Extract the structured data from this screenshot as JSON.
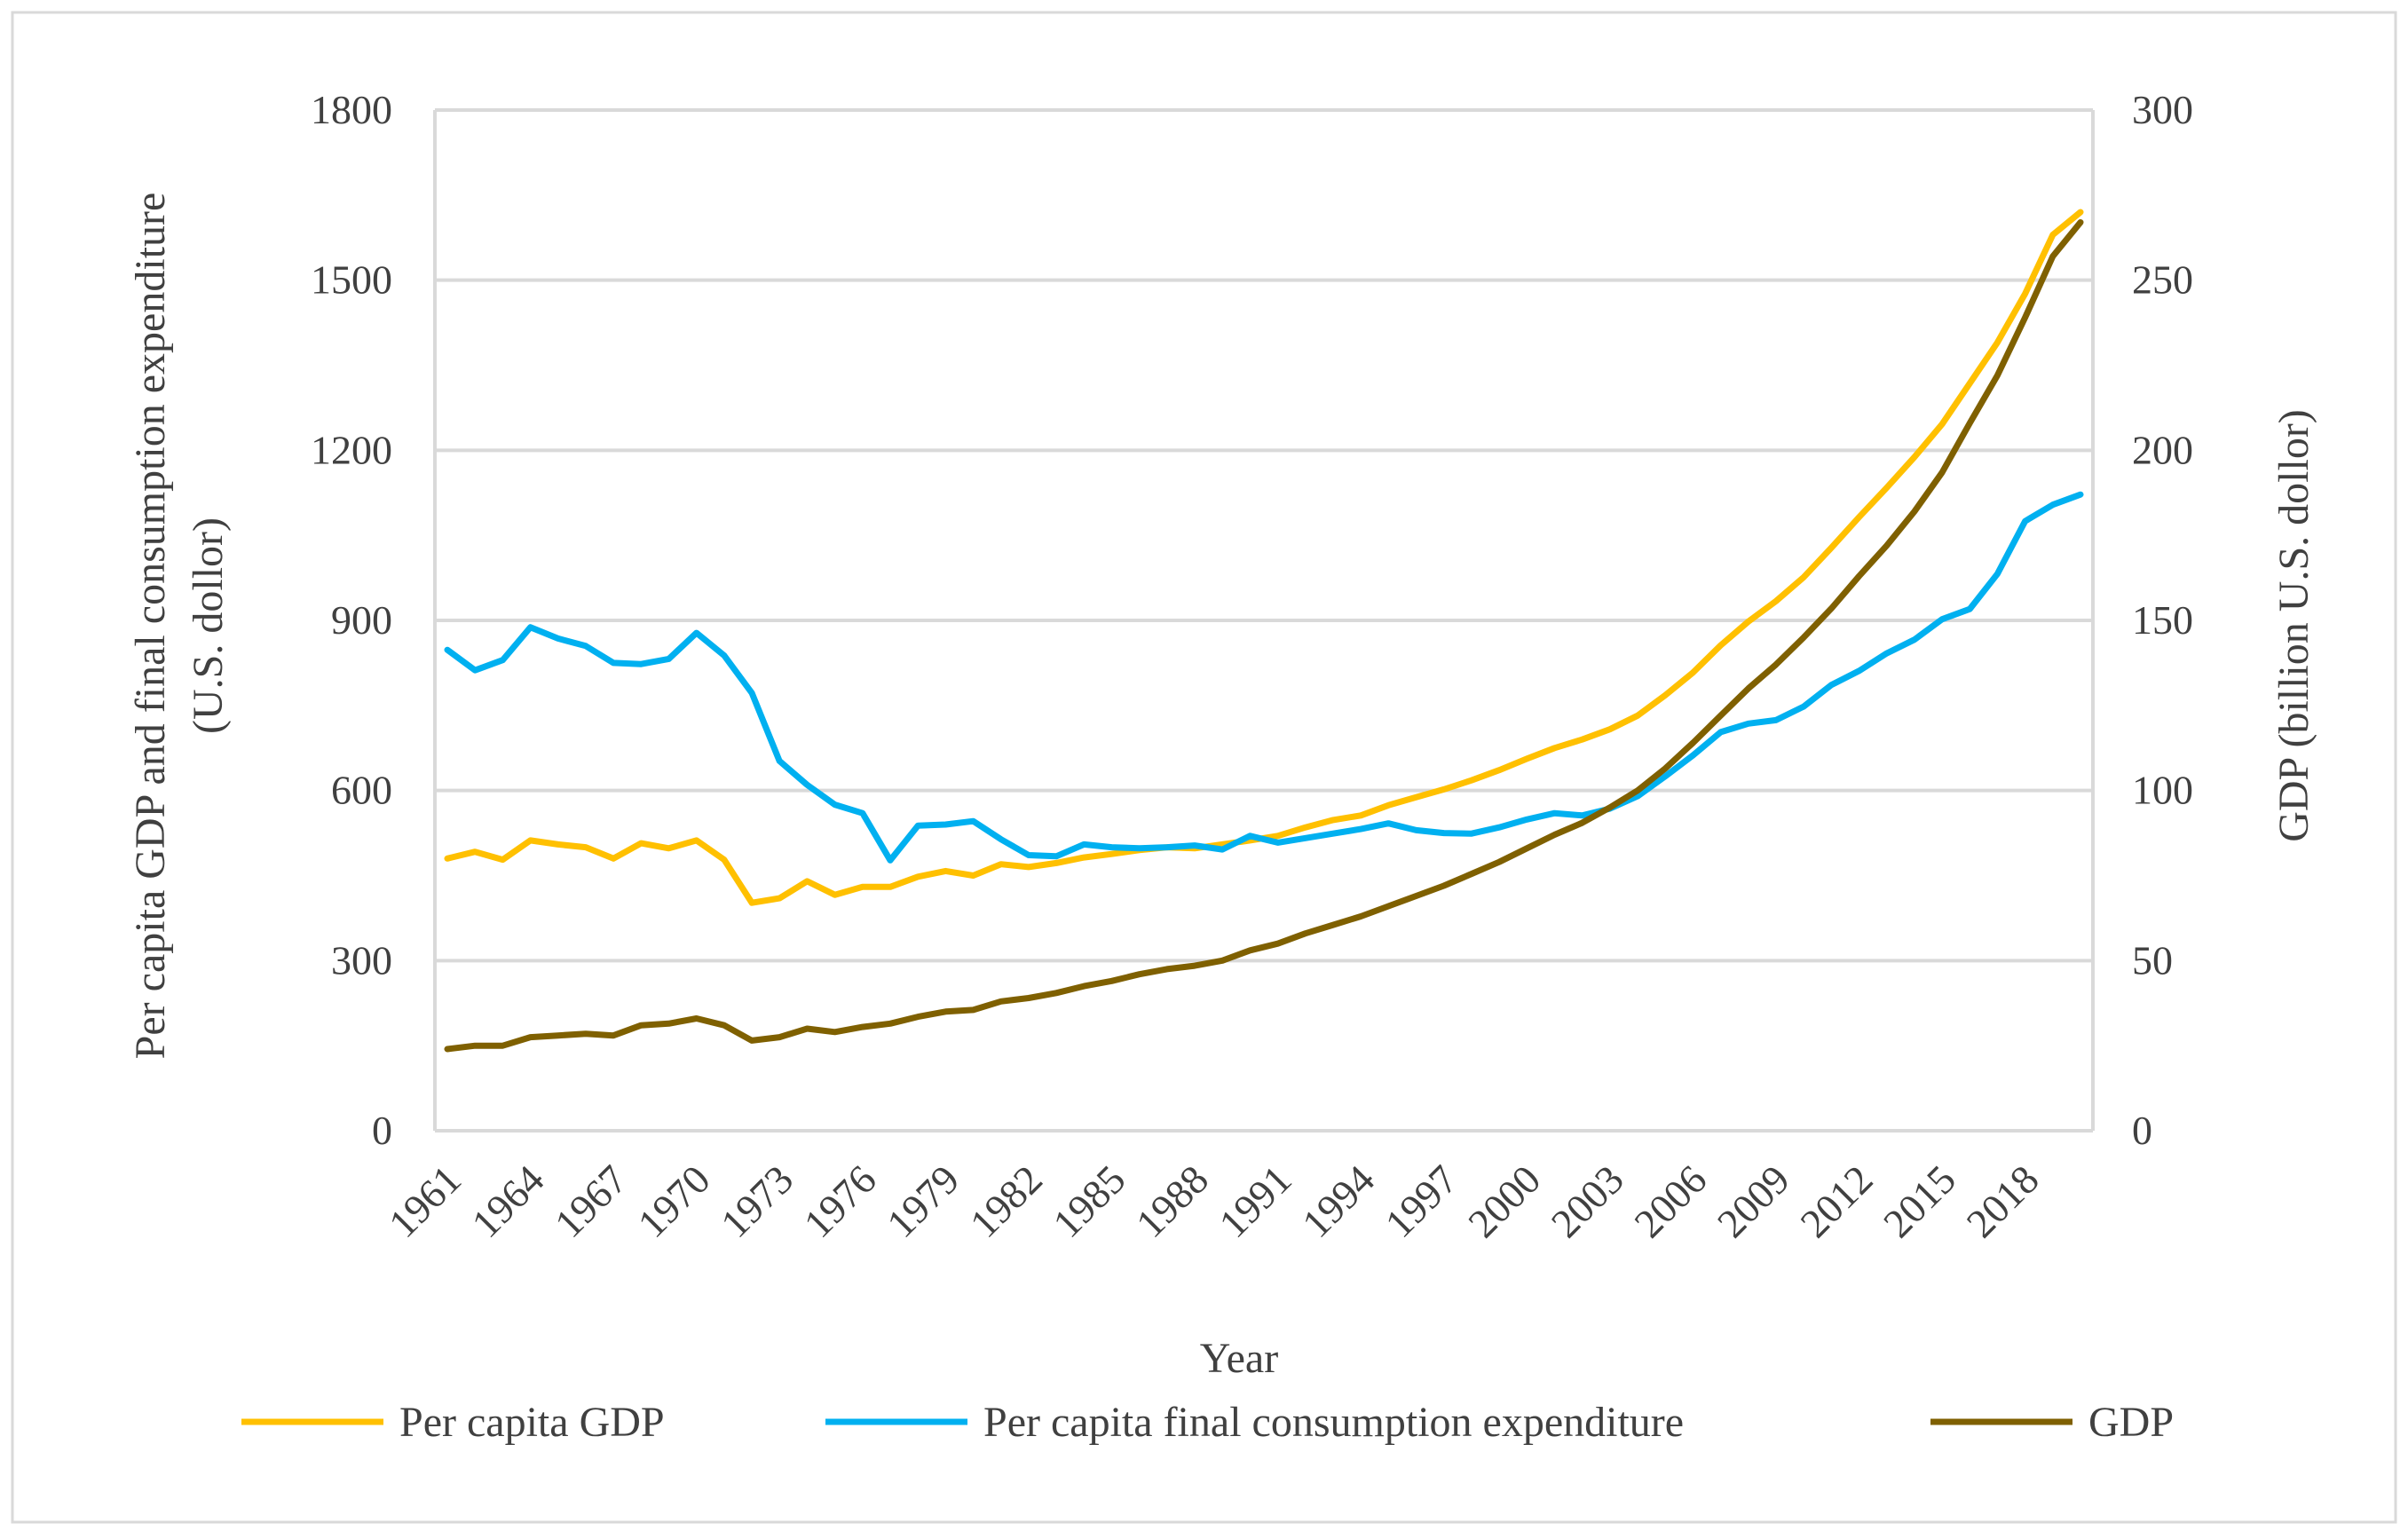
{
  "chart_data": {
    "type": "line",
    "title": "",
    "xlabel": "Year",
    "ylabel_left": "Per capita GDP and final consumption expenditure (U.S. dollor)",
    "ylabel_left_lines": [
      "Per capita GDP and final consumption expenditure",
      "(U.S. dollor)"
    ],
    "ylabel_right": "GDP (billion U.S. dollor)",
    "ylim_left": [
      0,
      1800
    ],
    "ylim_right": [
      0,
      300
    ],
    "yticks_left": [
      "0",
      "300",
      "600",
      "900",
      "1200",
      "1500",
      "1800"
    ],
    "yticks_right": [
      "0",
      "50",
      "100",
      "150",
      "200",
      "250",
      "300"
    ],
    "x_tick_labels": [
      "1961",
      "1964",
      "1967",
      "1970",
      "1973",
      "1976",
      "1979",
      "1982",
      "1985",
      "1988",
      "1991",
      "1994",
      "1997",
      "2000",
      "2003",
      "2006",
      "2009",
      "2012",
      "2015",
      "2018"
    ],
    "grid": true,
    "legend_position": "bottom",
    "x": [
      1961,
      1962,
      1963,
      1964,
      1965,
      1966,
      1967,
      1968,
      1969,
      1970,
      1971,
      1972,
      1973,
      1974,
      1975,
      1976,
      1977,
      1978,
      1979,
      1980,
      1981,
      1982,
      1983,
      1984,
      1985,
      1986,
      1987,
      1988,
      1989,
      1990,
      1991,
      1992,
      1993,
      1994,
      1995,
      1996,
      1997,
      1998,
      1999,
      2000,
      2001,
      2002,
      2003,
      2004,
      2005,
      2006,
      2007,
      2008,
      2009,
      2010,
      2011,
      2012,
      2013,
      2014,
      2015,
      2016,
      2017,
      2018,
      2019,
      2020
    ],
    "series": [
      {
        "name": "Per capita GDP",
        "axis": "left",
        "color": "#FFC000",
        "values": [
          480,
          492,
          478,
          512,
          505,
          500,
          480,
          507,
          498,
          512,
          478,
          402,
          410,
          440,
          416,
          430,
          430,
          448,
          458,
          450,
          470,
          465,
          472,
          482,
          488,
          495,
          500,
          498,
          505,
          512,
          520,
          535,
          548,
          556,
          574,
          588,
          602,
          618,
          636,
          656,
          675,
          690,
          708,
          732,
          768,
          808,
          856,
          898,
          934,
          976,
          1028,
          1082,
          1134,
          1188,
          1246,
          1318,
          1390,
          1476,
          1580,
          1620
        ]
      },
      {
        "name": "Per capita final consumption expenditure",
        "axis": "left",
        "color": "#00B0F0",
        "values": [
          848,
          812,
          830,
          888,
          868,
          855,
          825,
          823,
          832,
          878,
          838,
          772,
          652,
          610,
          575,
          560,
          477,
          538,
          540,
          546,
          514,
          486,
          484,
          505,
          500,
          498,
          500,
          503,
          496,
          520,
          508,
          516,
          524,
          532,
          542,
          530,
          525,
          524,
          535,
          549,
          560,
          556,
          568,
          590,
          625,
          662,
          703,
          718,
          724,
          748,
          786,
          811,
          842,
          866,
          902,
          920,
          982,
          1075,
          1104,
          1122
        ]
      },
      {
        "name": "GDP",
        "axis": "right",
        "color": "#7F6000",
        "values": [
          24,
          25,
          25,
          27.5,
          28,
          28.5,
          28,
          31,
          31.5,
          33,
          31,
          26.5,
          27.5,
          30,
          29,
          30.5,
          31.5,
          33.5,
          35,
          35.5,
          38,
          39,
          40.5,
          42.5,
          44,
          46,
          47.5,
          48.5,
          50,
          53,
          55,
          58,
          60.5,
          63,
          66,
          69,
          72,
          75.5,
          79,
          83,
          87,
          90.5,
          95,
          100,
          106.5,
          114,
          122,
          130,
          137,
          145,
          153.5,
          163,
          172,
          182,
          193.5,
          208,
          222,
          239,
          257,
          267
        ]
      }
    ]
  }
}
